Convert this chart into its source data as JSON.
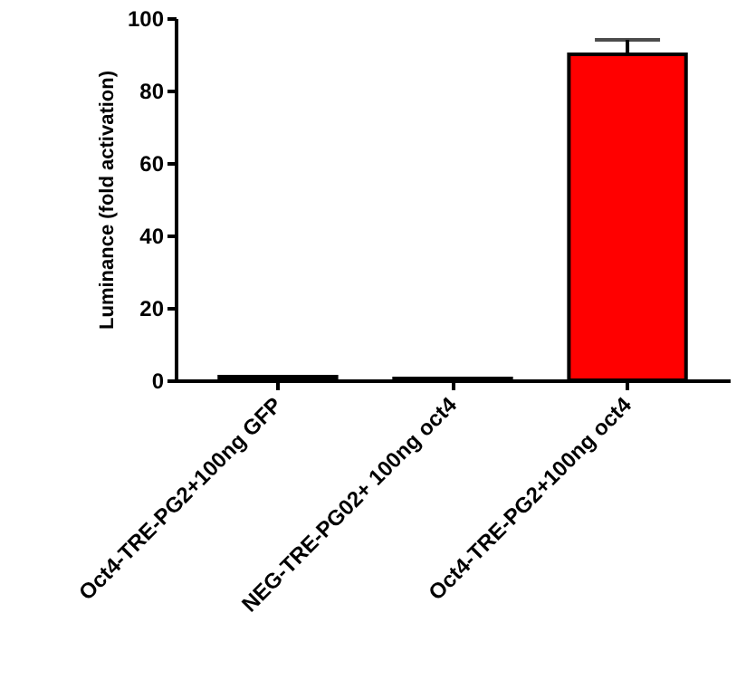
{
  "chart_data": {
    "type": "bar",
    "ylabel": "Luminance (fold activation)",
    "categories": [
      "Oct4-TRE-PG2+100ng GFP",
      "NEG-TRE-PG02+ 100ng oct4",
      "Oct4-TRE-PG2+100ng oct4"
    ],
    "values": [
      1,
      0.5,
      90
    ],
    "errors": [
      null,
      null,
      4
    ],
    "colors": [
      "#000000",
      "#000000",
      "#ff0000"
    ],
    "ylim": [
      0,
      100
    ],
    "yticks": [
      0,
      20,
      40,
      60,
      80,
      100
    ],
    "grid": false
  }
}
